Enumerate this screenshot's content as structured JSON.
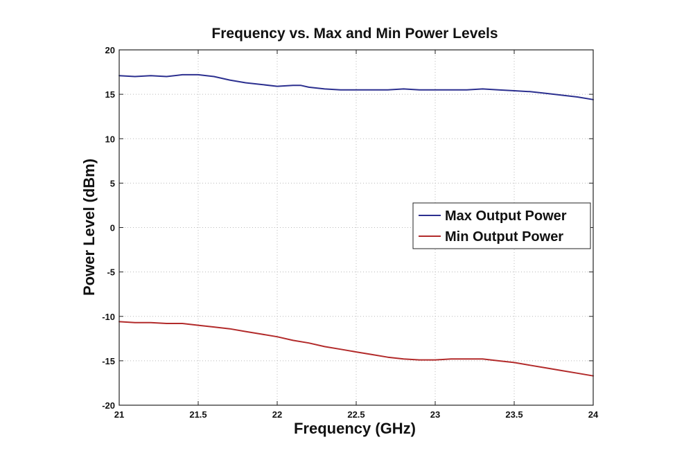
{
  "chart_data": {
    "type": "line",
    "title": "Frequency vs. Max and Min Power Levels",
    "xlabel": "Frequency (GHz)",
    "ylabel": "Power Level (dBm)",
    "xlim": [
      21,
      24
    ],
    "ylim": [
      -20,
      20
    ],
    "x_ticks": [
      21,
      21.5,
      22,
      22.5,
      23,
      23.5,
      24
    ],
    "y_ticks": [
      -20,
      -15,
      -10,
      -5,
      0,
      5,
      10,
      15,
      20
    ],
    "x_tick_labels": [
      "21",
      "21.5",
      "22",
      "22.5",
      "23",
      "23.5",
      "24"
    ],
    "y_tick_labels": [
      "-20",
      "-15",
      "-10",
      "-5",
      "0",
      "5",
      "10",
      "15",
      "20"
    ],
    "grid": true,
    "legend_position": "right",
    "series": [
      {
        "name": "Max Output Power",
        "color": "#2b2f8f",
        "x": [
          21.0,
          21.1,
          21.2,
          21.3,
          21.4,
          21.5,
          21.6,
          21.7,
          21.8,
          21.9,
          22.0,
          22.1,
          22.15,
          22.2,
          22.3,
          22.4,
          22.5,
          22.6,
          22.7,
          22.8,
          22.9,
          23.0,
          23.1,
          23.2,
          23.3,
          23.4,
          23.5,
          23.6,
          23.7,
          23.8,
          23.9,
          24.0
        ],
        "y": [
          17.1,
          17.0,
          17.1,
          17.0,
          17.2,
          17.2,
          17.0,
          16.6,
          16.3,
          16.1,
          15.9,
          16.0,
          16.0,
          15.8,
          15.6,
          15.5,
          15.5,
          15.5,
          15.5,
          15.6,
          15.5,
          15.5,
          15.5,
          15.5,
          15.6,
          15.5,
          15.4,
          15.3,
          15.1,
          14.9,
          14.7,
          14.4
        ]
      },
      {
        "name": "Min Output Power",
        "color": "#b22a2a",
        "x": [
          21.0,
          21.1,
          21.2,
          21.3,
          21.4,
          21.5,
          21.6,
          21.7,
          21.8,
          21.9,
          22.0,
          22.1,
          22.2,
          22.3,
          22.4,
          22.5,
          22.6,
          22.7,
          22.8,
          22.9,
          23.0,
          23.1,
          23.2,
          23.3,
          23.4,
          23.5,
          23.6,
          23.7,
          23.8,
          23.9,
          24.0
        ],
        "y": [
          -10.6,
          -10.7,
          -10.7,
          -10.8,
          -10.8,
          -11.0,
          -11.2,
          -11.4,
          -11.7,
          -12.0,
          -12.3,
          -12.7,
          -13.0,
          -13.4,
          -13.7,
          -14.0,
          -14.3,
          -14.6,
          -14.8,
          -14.9,
          -14.9,
          -14.8,
          -14.8,
          -14.8,
          -15.0,
          -15.2,
          -15.5,
          -15.8,
          -16.1,
          -16.4,
          -16.7
        ]
      }
    ]
  }
}
